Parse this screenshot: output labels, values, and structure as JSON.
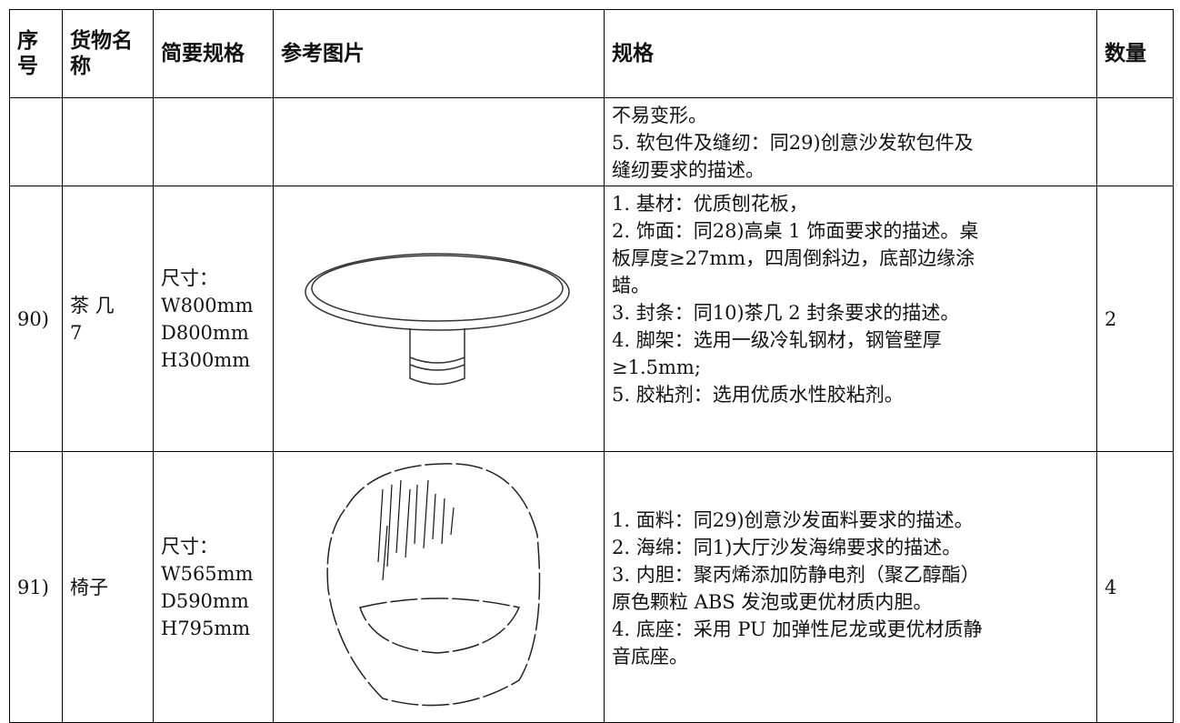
{
  "table": {
    "header": [
      "序号",
      "货物名称",
      "简要规格",
      "参考图片",
      "规格",
      "数量"
    ],
    "rows": [
      {
        "spec": [
          "不易变形。",
          "5. 软包件及缝纫：同29)创意沙发软包件及",
          "缝纫要求的描述。"
        ]
      },
      {
        "no": "90)",
        "name": [
          "茶 几",
          "7"
        ],
        "brief": [
          "尺寸：",
          "W800mm",
          "D800mm",
          "H300mm"
        ],
        "spec": [
          "1. 基材：优质刨花板，",
          "2. 饰面：同28)高桌 1 饰面要求的描述。桌",
          "板厚度≥27mm，四周倒斜边，底部边缘涂",
          "蜡。",
          "3. 封条：同10)茶几 2 封条要求的描述。",
          "4. 脚架：选用一级冷轧钢材，钢管壁厚",
          "≥1.5mm;",
          "5. 胶粘剂：选用优质水性胶粘剂。"
        ],
        "qty": "2"
      },
      {
        "no": "91)",
        "name": [
          "椅子"
        ],
        "brief": [
          "尺寸：",
          "W565mm",
          "D590mm",
          "H795mm"
        ],
        "spec": [
          "1. 面料：同29)创意沙发面料要求的描述。",
          "2. 海绵：同1)大厅沙发海绵要求的描述。",
          "3. 内胆：聚丙烯添加防静电剂（聚乙醇酯）",
          "原色颗粒 ABS 发泡或更优材质内胆。",
          "4. 底座：采用 PU 加弹性尼龙或更优材质静",
          "音底座。"
        ],
        "qty": "4"
      }
    ]
  }
}
